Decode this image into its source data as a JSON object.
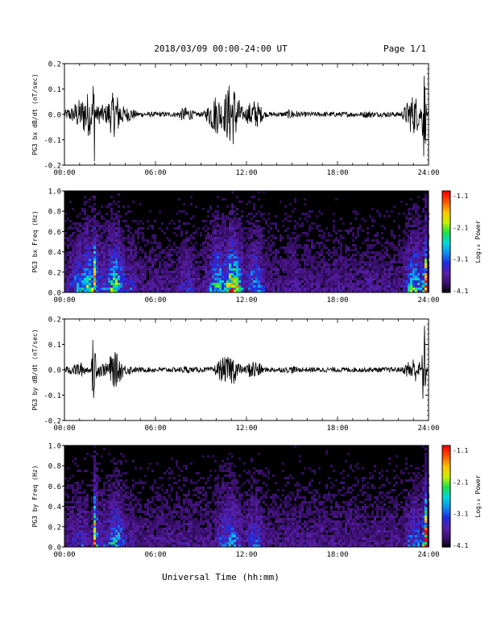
{
  "header": {
    "title": "2018/03/09  00:00-24:00 UT",
    "page": "Page 1/1"
  },
  "x_axis": {
    "title": "Universal Time (hh:mm)",
    "ticks": [
      "00:00",
      "06:00",
      "12:00",
      "18:00",
      "24:00"
    ]
  },
  "colorbar": {
    "label": "Log₁₀ Power",
    "ticks": [
      "-1.1",
      "-2.1",
      "-3.1",
      "-4.1"
    ],
    "colors": [
      "#000000",
      "#3a0f6e",
      "#5a1fa8",
      "#1f2be0",
      "#0d8ef0",
      "#00d8d8",
      "#19e04a",
      "#c6f000",
      "#ffc400",
      "#ff5a00",
      "#ff0000"
    ]
  },
  "chart_data": [
    {
      "type": "line",
      "ylabel": "PG3 bx dB/dt (nT/sec)",
      "xlim": [
        0,
        24
      ],
      "ylim": [
        -0.2,
        0.2
      ],
      "yticks": [
        "0.2",
        "0.1",
        "0.0",
        "-0.1",
        "-0.2"
      ],
      "color": "#000000",
      "envelope": [
        {
          "t": 0.5,
          "amp": 0.03
        },
        {
          "t": 1.0,
          "amp": 0.06
        },
        {
          "t": 1.5,
          "amp": 0.09
        },
        {
          "t": 1.95,
          "amp": 0.2
        },
        {
          "t": 2.4,
          "amp": 0.04
        },
        {
          "t": 3.3,
          "amp": 0.09
        },
        {
          "t": 4.2,
          "amp": 0.03
        },
        {
          "t": 8.0,
          "amp": 0.03
        },
        {
          "t": 10.0,
          "amp": 0.08
        },
        {
          "t": 11.0,
          "amp": 0.13
        },
        {
          "t": 12.5,
          "amp": 0.06
        },
        {
          "t": 15.0,
          "amp": 0.02
        },
        {
          "t": 20.0,
          "amp": 0.015
        },
        {
          "t": 23.0,
          "amp": 0.08
        },
        {
          "t": 23.7,
          "amp": 0.2
        }
      ]
    },
    {
      "type": "heatmap",
      "ylabel": "PG3 bx Freq (Hz)",
      "xlim": [
        0,
        24
      ],
      "ylim": [
        0.0,
        1.0
      ],
      "yticks": [
        "1.0",
        "0.8",
        "0.6",
        "0.4",
        "0.2",
        "0.0"
      ],
      "zlim": [
        -4.1,
        -1.1
      ],
      "zlabel": "Log₁₀ Power"
    },
    {
      "type": "line",
      "ylabel": "PG3 by dB/dt (nT/sec)",
      "xlim": [
        0,
        24
      ],
      "ylim": [
        -0.2,
        0.2
      ],
      "yticks": [
        "0.2",
        "0.1",
        "0.0",
        "-0.1",
        "-0.2"
      ],
      "color": "#000000",
      "envelope": [
        {
          "t": 0.5,
          "amp": 0.02
        },
        {
          "t": 1.0,
          "amp": 0.03
        },
        {
          "t": 1.95,
          "amp": 0.2
        },
        {
          "t": 2.4,
          "amp": 0.03
        },
        {
          "t": 3.3,
          "amp": 0.07
        },
        {
          "t": 4.2,
          "amp": 0.02
        },
        {
          "t": 8.0,
          "amp": 0.015
        },
        {
          "t": 10.5,
          "amp": 0.05
        },
        {
          "t": 11.0,
          "amp": 0.06
        },
        {
          "t": 12.5,
          "amp": 0.04
        },
        {
          "t": 15.0,
          "amp": 0.015
        },
        {
          "t": 20.0,
          "amp": 0.01
        },
        {
          "t": 23.0,
          "amp": 0.05
        },
        {
          "t": 23.7,
          "amp": 0.2
        }
      ]
    },
    {
      "type": "heatmap",
      "ylabel": "PG3 by Freq (Hz)",
      "xlim": [
        0,
        24
      ],
      "ylim": [
        0.0,
        1.0
      ],
      "yticks": [
        "1.0",
        "0.8",
        "0.6",
        "0.4",
        "0.2",
        "0.0"
      ],
      "zlim": [
        -4.1,
        -1.1
      ],
      "zlabel": "Log₁₀ Power"
    }
  ]
}
